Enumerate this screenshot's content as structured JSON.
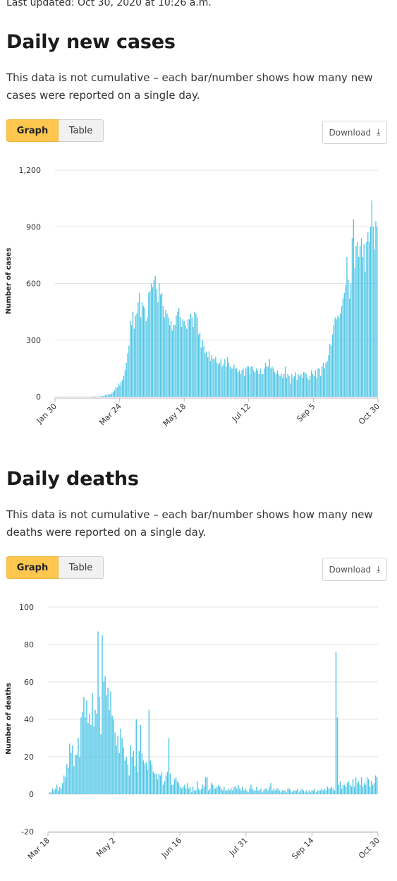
{
  "last_updated": "Last updated: Oct 30, 2020 at 10:26 a.m.",
  "colors": {
    "bar": "#4fc6e6",
    "accent": "#fdc74f",
    "grid": "#e3e3e3"
  },
  "cases": {
    "title": "Daily new cases",
    "description": "This data is not cumulative – each bar/number shows how many new cases were reported on a single day.",
    "graph_label": "Graph",
    "table_label": "Table",
    "download_label": "Download",
    "download_icon": "download-icon"
  },
  "deaths": {
    "title": "Daily deaths",
    "description": "This data is not cumulative – each bar/number shows how many new deaths were reported on a single day.",
    "graph_label": "Graph",
    "table_label": "Table",
    "download_label": "Download",
    "download_icon": "download-icon"
  },
  "chart_data": [
    {
      "type": "bar",
      "ylabel": "Number of cases",
      "ylim": [
        0,
        1200
      ],
      "yticks": [
        0,
        300,
        600,
        900,
        1200
      ],
      "yticklabels": [
        "0",
        "300",
        "600",
        "900",
        "1,200"
      ],
      "xticks": [
        "Jan 30",
        "Mar 24",
        "May 18",
        "Jul 12",
        "Sep 5",
        "Oct 30"
      ],
      "grid": true,
      "series": [
        {
          "values": [
            0,
            0,
            0,
            0,
            0,
            0,
            0,
            0,
            0,
            0,
            0,
            0,
            0,
            0,
            0,
            0,
            0,
            0,
            0,
            0,
            0,
            0,
            0,
            0,
            0,
            0,
            0,
            0,
            0,
            1,
            1,
            1,
            0,
            0,
            1,
            2,
            3,
            5,
            10,
            8,
            12,
            15,
            12,
            20,
            25,
            35,
            50,
            50,
            70,
            60,
            80,
            90,
            110,
            140,
            180,
            230,
            270,
            400,
            380,
            450,
            360,
            430,
            440,
            500,
            550,
            420,
            500,
            480,
            470,
            400,
            420,
            550,
            560,
            600,
            580,
            620,
            640,
            570,
            500,
            600,
            540,
            550,
            480,
            420,
            460,
            440,
            420,
            380,
            400,
            350,
            380,
            380,
            430,
            450,
            470,
            420,
            370,
            410,
            400,
            380,
            360,
            410,
            410,
            440,
            420,
            370,
            450,
            440,
            420,
            330,
            340,
            260,
            300,
            270,
            230,
            240,
            210,
            240,
            190,
            220,
            200,
            200,
            210,
            180,
            170,
            180,
            200,
            160,
            170,
            200,
            160,
            210,
            180,
            160,
            150,
            150,
            170,
            150,
            150,
            130,
            140,
            120,
            140,
            150,
            110,
            150,
            160,
            160,
            120,
            160,
            160,
            140,
            130,
            150,
            140,
            120,
            150,
            120,
            120,
            150,
            180,
            160,
            160,
            200,
            150,
            160,
            150,
            130,
            120,
            140,
            120,
            110,
            120,
            100,
            120,
            160,
            100,
            120,
            110,
            70,
            120,
            100,
            110,
            130,
            90,
            120,
            110,
            120,
            100,
            130,
            130,
            120,
            100,
            90,
            110,
            140,
            120,
            110,
            140,
            100,
            150,
            150,
            110,
            160,
            180,
            150,
            180,
            190,
            220,
            280,
            270,
            330,
            380,
            420,
            410,
            430,
            420,
            440,
            480,
            520,
            550,
            590,
            740,
            620,
            520,
            600,
            840,
            940,
            680,
            800,
            820,
            740,
            800,
            840,
            740,
            810,
            660,
            820,
            870,
            820,
            900,
            1040,
            900,
            780,
            930,
            900
          ]
        }
      ]
    },
    {
      "type": "bar",
      "ylabel": "Number of deaths",
      "ylim": [
        -20,
        100
      ],
      "yticks": [
        -20,
        0,
        20,
        40,
        60,
        80,
        100
      ],
      "yticklabels": [
        "-20",
        "0",
        "20",
        "40",
        "60",
        "80",
        "100"
      ],
      "xticks": [
        "Mar 18",
        "May 2",
        "Jun 16",
        "Jul 31",
        "Sep 14",
        "Oct 30"
      ],
      "grid": true,
      "series": [
        {
          "values": [
            0,
            1,
            1,
            3,
            2,
            3,
            5,
            2,
            4,
            3,
            6,
            10,
            9,
            16,
            14,
            27,
            22,
            26,
            15,
            21,
            21,
            30,
            20,
            41,
            44,
            52,
            41,
            50,
            38,
            43,
            37,
            54,
            36,
            45,
            43,
            87,
            52,
            32,
            85,
            60,
            63,
            53,
            57,
            45,
            55,
            42,
            40,
            33,
            26,
            31,
            22,
            35,
            30,
            25,
            18,
            20,
            16,
            10,
            26,
            20,
            23,
            15,
            40,
            12,
            23,
            37,
            22,
            18,
            16,
            17,
            13,
            45,
            18,
            16,
            12,
            11,
            11,
            8,
            11,
            10,
            12,
            5,
            7,
            10,
            12,
            30,
            11,
            5,
            5,
            8,
            9,
            7,
            6,
            4,
            3,
            4,
            5,
            3,
            6,
            3,
            4,
            1,
            4,
            2,
            2,
            7,
            3,
            2,
            3,
            5,
            4,
            9,
            9,
            2,
            3,
            6,
            5,
            3,
            3,
            4,
            5,
            4,
            3,
            2,
            4,
            2,
            2,
            3,
            2,
            3,
            2,
            4,
            4,
            3,
            5,
            3,
            2,
            4,
            2,
            3,
            2,
            1,
            3,
            5,
            3,
            2,
            2,
            4,
            2,
            2,
            3,
            1,
            2,
            3,
            3,
            2,
            4,
            6,
            2,
            3,
            2,
            3,
            3,
            2,
            1,
            2,
            2,
            2,
            1,
            3,
            3,
            2,
            1,
            2,
            2,
            2,
            3,
            1,
            2,
            3,
            2,
            1,
            2,
            1,
            2,
            1,
            2,
            2,
            3,
            1,
            2,
            2,
            2,
            3,
            2,
            3,
            2,
            4,
            3,
            3,
            4,
            3,
            2,
            76,
            41,
            5,
            7,
            3,
            5,
            5,
            4,
            6,
            7,
            5,
            4,
            8,
            4,
            9,
            6,
            7,
            5,
            9,
            4,
            6,
            5,
            9,
            8,
            4,
            7,
            5,
            6,
            10,
            9
          ]
        }
      ]
    }
  ]
}
